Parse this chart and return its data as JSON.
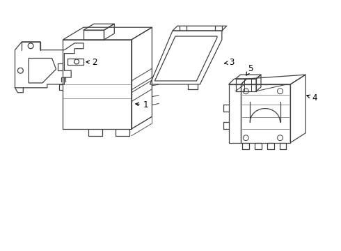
{
  "background_color": "#ffffff",
  "line_color": "#404040",
  "line_width": 0.9,
  "label_color": "#000000",
  "label_fontsize": 8.5,
  "fig_width": 4.9,
  "fig_height": 3.6,
  "dpi": 100
}
